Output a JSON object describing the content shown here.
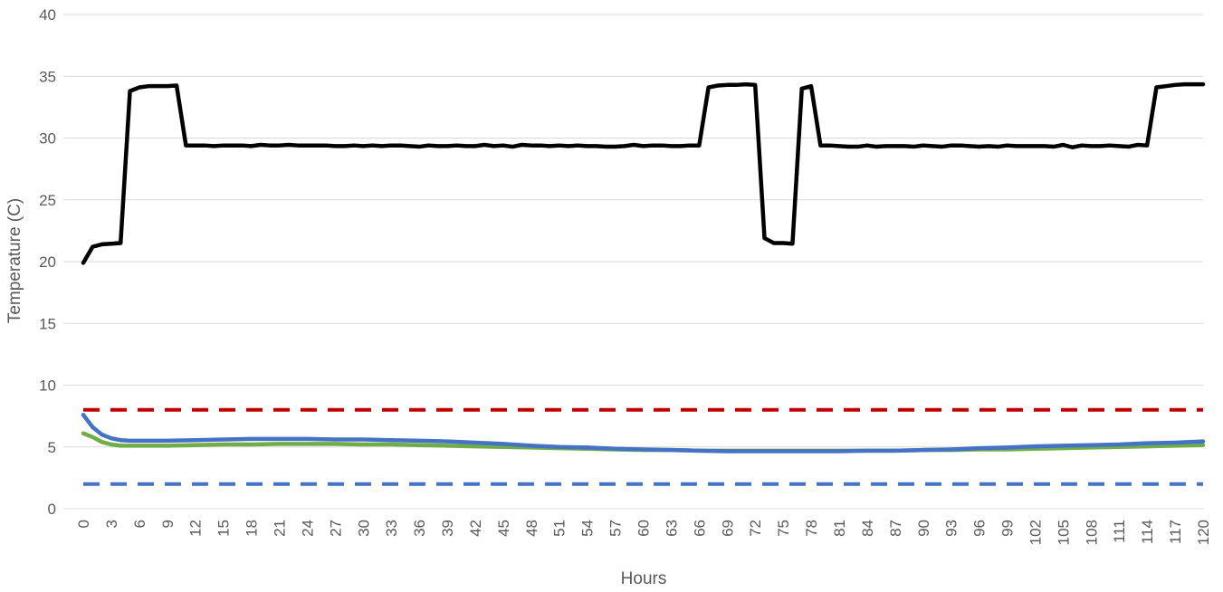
{
  "chart_data": {
    "type": "line",
    "title": "",
    "xlabel": "Hours",
    "ylabel": "Temperature (C)",
    "ylim": [
      0,
      40
    ],
    "yticks": [
      0,
      5,
      10,
      15,
      20,
      25,
      30,
      35,
      40
    ],
    "xlim": [
      0,
      120
    ],
    "xticks": [
      0,
      3,
      6,
      9,
      12,
      15,
      18,
      21,
      24,
      27,
      30,
      33,
      36,
      39,
      42,
      45,
      48,
      51,
      54,
      57,
      60,
      63,
      66,
      69,
      72,
      75,
      78,
      81,
      84,
      87,
      90,
      93,
      96,
      99,
      102,
      105,
      108,
      111,
      114,
      117,
      120
    ],
    "grid": "horizontal",
    "legend": "none",
    "series": [
      {
        "color": "#000000",
        "style": "solid",
        "points": [
          [
            0,
            19.9
          ],
          [
            1,
            21.2
          ],
          [
            2,
            21.4
          ],
          [
            3,
            21.45
          ],
          [
            4,
            21.5
          ],
          [
            5,
            33.8
          ],
          [
            6,
            34.1
          ],
          [
            7,
            34.2
          ],
          [
            8,
            34.2
          ],
          [
            9,
            34.2
          ],
          [
            10,
            34.25
          ],
          [
            11,
            29.4
          ],
          [
            12,
            29.4
          ],
          [
            13,
            29.4
          ],
          [
            14,
            29.35
          ],
          [
            15,
            29.4
          ],
          [
            16,
            29.4
          ],
          [
            17,
            29.4
          ],
          [
            18,
            29.35
          ],
          [
            19,
            29.45
          ],
          [
            20,
            29.4
          ],
          [
            21,
            29.4
          ],
          [
            22,
            29.45
          ],
          [
            23,
            29.4
          ],
          [
            24,
            29.4
          ],
          [
            25,
            29.4
          ],
          [
            26,
            29.4
          ],
          [
            27,
            29.35
          ],
          [
            28,
            29.35
          ],
          [
            29,
            29.4
          ],
          [
            30,
            29.35
          ],
          [
            31,
            29.4
          ],
          [
            32,
            29.35
          ],
          [
            33,
            29.4
          ],
          [
            34,
            29.4
          ],
          [
            35,
            29.35
          ],
          [
            36,
            29.3
          ],
          [
            37,
            29.4
          ],
          [
            38,
            29.35
          ],
          [
            39,
            29.35
          ],
          [
            40,
            29.4
          ],
          [
            41,
            29.35
          ],
          [
            42,
            29.35
          ],
          [
            43,
            29.45
          ],
          [
            44,
            29.35
          ],
          [
            45,
            29.4
          ],
          [
            46,
            29.3
          ],
          [
            47,
            29.45
          ],
          [
            48,
            29.4
          ],
          [
            49,
            29.4
          ],
          [
            50,
            29.35
          ],
          [
            51,
            29.4
          ],
          [
            52,
            29.35
          ],
          [
            53,
            29.4
          ],
          [
            54,
            29.35
          ],
          [
            55,
            29.35
          ],
          [
            56,
            29.3
          ],
          [
            57,
            29.3
          ],
          [
            58,
            29.35
          ],
          [
            59,
            29.45
          ],
          [
            60,
            29.35
          ],
          [
            61,
            29.4
          ],
          [
            62,
            29.4
          ],
          [
            63,
            29.35
          ],
          [
            64,
            29.35
          ],
          [
            65,
            29.4
          ],
          [
            66,
            29.4
          ],
          [
            67,
            34.1
          ],
          [
            68,
            34.25
          ],
          [
            69,
            34.3
          ],
          [
            70,
            34.3
          ],
          [
            71,
            34.35
          ],
          [
            72,
            34.3
          ],
          [
            73,
            21.9
          ],
          [
            74,
            21.5
          ],
          [
            75,
            21.5
          ],
          [
            76,
            21.45
          ],
          [
            77,
            34.0
          ],
          [
            78,
            34.2
          ],
          [
            79,
            29.4
          ],
          [
            80,
            29.4
          ],
          [
            81,
            29.35
          ],
          [
            82,
            29.3
          ],
          [
            83,
            29.3
          ],
          [
            84,
            29.4
          ],
          [
            85,
            29.3
          ],
          [
            86,
            29.35
          ],
          [
            87,
            29.35
          ],
          [
            88,
            29.35
          ],
          [
            89,
            29.3
          ],
          [
            90,
            29.4
          ],
          [
            91,
            29.35
          ],
          [
            92,
            29.3
          ],
          [
            93,
            29.4
          ],
          [
            94,
            29.4
          ],
          [
            95,
            29.35
          ],
          [
            96,
            29.3
          ],
          [
            97,
            29.35
          ],
          [
            98,
            29.3
          ],
          [
            99,
            29.4
          ],
          [
            100,
            29.35
          ],
          [
            101,
            29.35
          ],
          [
            102,
            29.35
          ],
          [
            103,
            29.35
          ],
          [
            104,
            29.3
          ],
          [
            105,
            29.45
          ],
          [
            106,
            29.25
          ],
          [
            107,
            29.4
          ],
          [
            108,
            29.35
          ],
          [
            109,
            29.35
          ],
          [
            110,
            29.4
          ],
          [
            111,
            29.35
          ],
          [
            112,
            29.3
          ],
          [
            113,
            29.45
          ],
          [
            114,
            29.4
          ],
          [
            115,
            34.1
          ],
          [
            116,
            34.2
          ],
          [
            117,
            34.3
          ],
          [
            118,
            34.35
          ],
          [
            119,
            34.35
          ],
          [
            120,
            34.35
          ]
        ]
      },
      {
        "color": "#70ad47",
        "style": "solid",
        "points": [
          [
            0,
            6.1
          ],
          [
            1,
            5.8
          ],
          [
            2,
            5.4
          ],
          [
            3,
            5.2
          ],
          [
            4,
            5.1
          ],
          [
            6,
            5.1
          ],
          [
            9,
            5.1
          ],
          [
            12,
            5.15
          ],
          [
            15,
            5.2
          ],
          [
            18,
            5.2
          ],
          [
            21,
            5.25
          ],
          [
            24,
            5.25
          ],
          [
            27,
            5.25
          ],
          [
            30,
            5.2
          ],
          [
            33,
            5.2
          ],
          [
            36,
            5.15
          ],
          [
            39,
            5.1
          ],
          [
            42,
            5.05
          ],
          [
            45,
            5.0
          ],
          [
            48,
            4.95
          ],
          [
            51,
            4.9
          ],
          [
            54,
            4.85
          ],
          [
            57,
            4.8
          ],
          [
            60,
            4.75
          ],
          [
            63,
            4.75
          ],
          [
            66,
            4.7
          ],
          [
            69,
            4.7
          ],
          [
            72,
            4.7
          ],
          [
            75,
            4.7
          ],
          [
            78,
            4.7
          ],
          [
            81,
            4.7
          ],
          [
            84,
            4.7
          ],
          [
            87,
            4.7
          ],
          [
            90,
            4.75
          ],
          [
            93,
            4.75
          ],
          [
            96,
            4.8
          ],
          [
            99,
            4.8
          ],
          [
            102,
            4.85
          ],
          [
            105,
            4.9
          ],
          [
            108,
            4.95
          ],
          [
            111,
            5.0
          ],
          [
            114,
            5.05
          ],
          [
            117,
            5.1
          ],
          [
            120,
            5.15
          ]
        ]
      },
      {
        "color": "#4472c4",
        "style": "solid",
        "points": [
          [
            0,
            7.6
          ],
          [
            1,
            6.6
          ],
          [
            2,
            6.0
          ],
          [
            3,
            5.7
          ],
          [
            4,
            5.55
          ],
          [
            5,
            5.5
          ],
          [
            6,
            5.5
          ],
          [
            9,
            5.5
          ],
          [
            12,
            5.55
          ],
          [
            15,
            5.6
          ],
          [
            18,
            5.65
          ],
          [
            21,
            5.65
          ],
          [
            24,
            5.65
          ],
          [
            27,
            5.6
          ],
          [
            30,
            5.6
          ],
          [
            33,
            5.55
          ],
          [
            36,
            5.5
          ],
          [
            39,
            5.45
          ],
          [
            42,
            5.35
          ],
          [
            45,
            5.25
          ],
          [
            48,
            5.1
          ],
          [
            51,
            5.0
          ],
          [
            54,
            4.95
          ],
          [
            57,
            4.85
          ],
          [
            60,
            4.8
          ],
          [
            63,
            4.75
          ],
          [
            66,
            4.7
          ],
          [
            69,
            4.65
          ],
          [
            72,
            4.65
          ],
          [
            75,
            4.65
          ],
          [
            78,
            4.65
          ],
          [
            81,
            4.65
          ],
          [
            84,
            4.7
          ],
          [
            87,
            4.7
          ],
          [
            90,
            4.75
          ],
          [
            93,
            4.8
          ],
          [
            96,
            4.9
          ],
          [
            99,
            4.95
          ],
          [
            102,
            5.05
          ],
          [
            105,
            5.1
          ],
          [
            108,
            5.15
          ],
          [
            111,
            5.2
          ],
          [
            114,
            5.3
          ],
          [
            117,
            5.35
          ],
          [
            120,
            5.45
          ]
        ]
      },
      {
        "color": "#c00000",
        "style": "dashed",
        "points": [
          [
            0,
            8.0
          ],
          [
            120,
            8.0
          ]
        ]
      },
      {
        "color": "#4472c4",
        "style": "dashed",
        "points": [
          [
            0,
            2.0
          ],
          [
            120,
            2.0
          ]
        ]
      }
    ]
  }
}
